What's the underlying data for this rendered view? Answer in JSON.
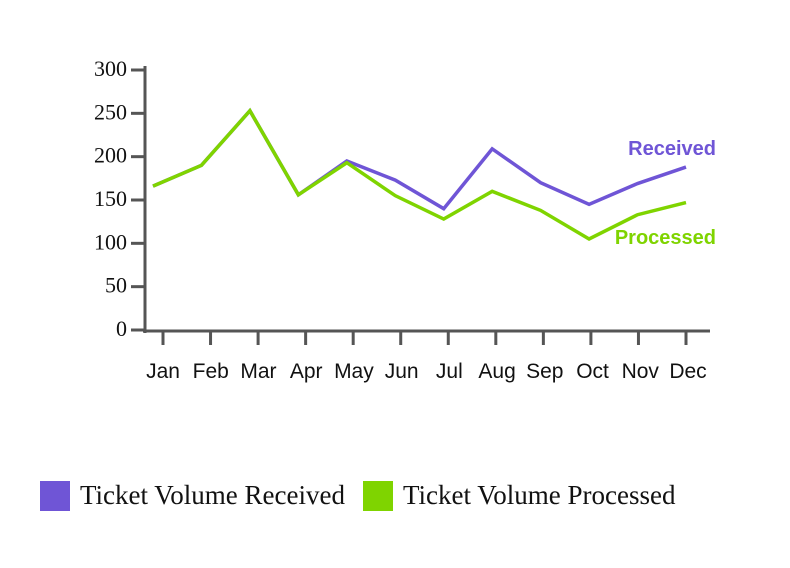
{
  "chart_data": {
    "type": "line",
    "categories": [
      "Jan",
      "Feb",
      "Mar",
      "Apr",
      "May",
      "Jun",
      "Jul",
      "Aug",
      "Sep",
      "Oct",
      "Nov",
      "Dec"
    ],
    "series": [
      {
        "name": "Ticket Volume Received",
        "label": "Received",
        "color": "#6f55d6",
        "values": [
          166,
          190,
          253,
          156,
          195,
          173,
          140,
          209,
          170,
          145,
          169,
          188
        ]
      },
      {
        "name": "Ticket Volume Processed",
        "label": "Processed",
        "color": "#7fd400",
        "values": [
          166,
          190,
          253,
          156,
          193,
          155,
          128,
          160,
          138,
          105,
          133,
          147
        ]
      }
    ],
    "yticks": [
      0,
      50,
      100,
      150,
      200,
      250,
      300
    ],
    "ylim": [
      0,
      300
    ],
    "grid": false,
    "legend_position": "bottom"
  }
}
